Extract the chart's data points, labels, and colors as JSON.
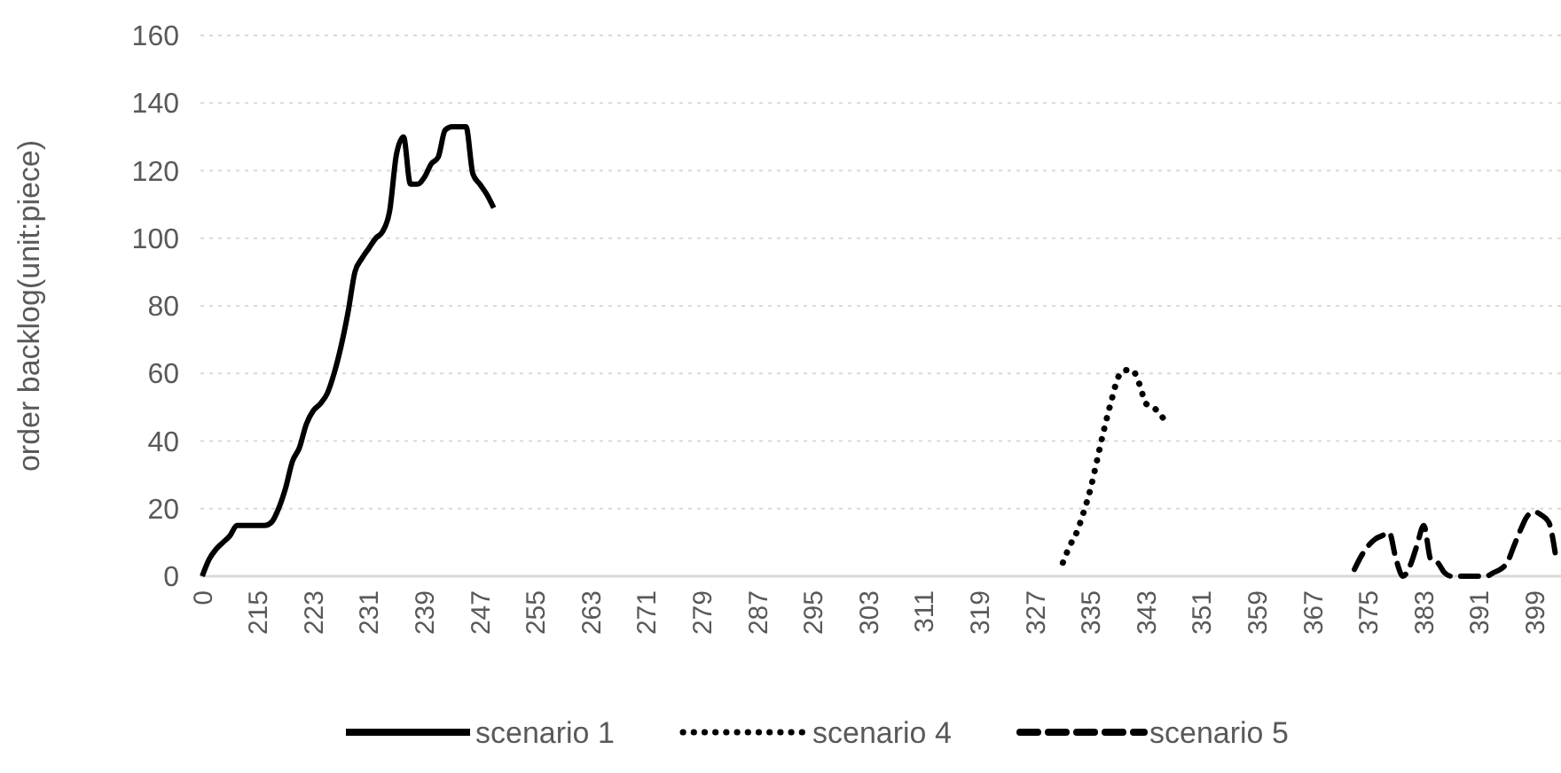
{
  "chart_data": {
    "type": "line",
    "ylabel": "order backlog(unit:piece)",
    "ylim": [
      0,
      160
    ],
    "yticks": [
      0,
      20,
      40,
      60,
      80,
      100,
      120,
      140,
      160
    ],
    "grid": "y",
    "legend": "bottom",
    "categories": [
      "0",
      null,
      null,
      null,
      null,
      null,
      null,
      null,
      "215",
      null,
      null,
      null,
      null,
      null,
      null,
      null,
      "223",
      null,
      null,
      null,
      null,
      null,
      null,
      null,
      "231",
      null,
      null,
      null,
      null,
      null,
      null,
      null,
      "239",
      null,
      null,
      null,
      null,
      null,
      null,
      null,
      "247",
      null,
      null,
      null,
      null,
      null,
      null,
      null,
      "255",
      null,
      null,
      null,
      null,
      null,
      null,
      null,
      "263",
      null,
      null,
      null,
      null,
      null,
      null,
      null,
      "271",
      null,
      null,
      null,
      null,
      null,
      null,
      null,
      "279",
      null,
      null,
      null,
      null,
      null,
      null,
      null,
      "287",
      null,
      null,
      null,
      null,
      null,
      null,
      null,
      "295",
      null,
      null,
      null,
      null,
      null,
      null,
      null,
      "303",
      null,
      null,
      null,
      null,
      null,
      null,
      null,
      "311",
      null,
      null,
      null,
      null,
      null,
      null,
      null,
      "319",
      null,
      null,
      null,
      null,
      null,
      null,
      null,
      "327",
      null,
      null,
      null,
      null,
      null,
      null,
      null,
      "335",
      null,
      null,
      null,
      null,
      null,
      null,
      null,
      "343",
      null,
      null,
      null,
      null,
      null,
      null,
      null,
      "351",
      null,
      null,
      null,
      null,
      null,
      null,
      null,
      "359",
      null,
      null,
      null,
      null,
      null,
      null,
      null,
      "367",
      null,
      null,
      null,
      null,
      null,
      null,
      null,
      "375",
      null,
      null,
      null,
      null,
      null,
      null,
      null,
      "383",
      null,
      null,
      null,
      null,
      null,
      null,
      null,
      "391",
      null,
      null,
      null,
      null,
      null,
      null,
      null,
      "399",
      null,
      null,
      null
    ],
    "series": [
      {
        "name": "scenario 1",
        "color": "#000000",
        "line_style": "solid",
        "values": [
          0,
          5,
          8,
          10,
          12,
          15,
          15,
          15,
          15,
          15,
          16,
          20,
          26,
          34,
          38,
          45,
          49,
          51,
          54,
          60,
          68,
          78,
          90,
          94,
          97,
          100,
          102,
          108,
          125,
          130,
          116,
          116,
          118,
          122,
          124,
          132,
          133,
          133,
          133,
          119,
          116,
          113,
          109,
          null,
          null,
          null,
          null,
          null,
          null,
          null,
          null,
          null,
          null,
          null,
          null,
          null,
          null,
          null,
          null,
          null,
          null,
          null,
          null,
          null,
          null,
          null,
          null,
          null,
          null,
          null,
          null,
          null,
          null,
          null,
          null,
          null,
          null,
          null,
          null,
          null,
          null,
          null,
          null,
          null,
          null,
          null,
          null,
          null,
          null,
          null,
          null,
          null,
          null,
          null,
          null,
          null,
          null,
          null,
          null,
          null,
          null,
          null,
          null,
          null,
          null,
          null,
          null,
          null,
          null,
          null,
          null,
          null,
          null,
          null,
          null,
          null,
          null,
          null,
          null,
          null,
          null,
          null,
          null,
          null,
          null,
          null,
          null,
          null,
          null,
          null,
          null,
          null,
          null,
          null,
          null,
          null,
          null,
          null,
          null,
          null,
          null,
          null,
          null,
          null,
          null,
          null,
          null,
          null,
          null,
          null,
          null,
          null,
          null,
          null,
          null,
          null,
          null,
          null,
          null,
          null,
          null,
          null,
          null,
          null,
          null,
          null,
          null,
          null,
          null,
          null,
          null,
          null,
          null,
          null,
          null,
          null,
          null,
          null,
          null,
          null,
          null,
          null,
          null,
          null,
          null,
          null,
          null,
          null,
          null,
          null,
          null,
          null,
          null,
          null,
          null,
          null
        ]
      },
      {
        "name": "scenario 4",
        "color": "#000000",
        "line_style": "dotted",
        "values": [
          null,
          null,
          null,
          null,
          null,
          null,
          null,
          null,
          null,
          null,
          null,
          null,
          null,
          null,
          null,
          null,
          null,
          null,
          null,
          null,
          null,
          null,
          null,
          null,
          null,
          null,
          null,
          null,
          null,
          null,
          null,
          null,
          null,
          null,
          null,
          null,
          null,
          null,
          null,
          null,
          null,
          null,
          null,
          null,
          null,
          null,
          null,
          null,
          null,
          null,
          null,
          null,
          null,
          null,
          null,
          null,
          null,
          null,
          null,
          null,
          null,
          null,
          null,
          null,
          null,
          null,
          null,
          null,
          null,
          null,
          null,
          null,
          null,
          null,
          null,
          null,
          null,
          null,
          null,
          null,
          null,
          null,
          null,
          null,
          null,
          null,
          null,
          null,
          null,
          null,
          null,
          null,
          null,
          null,
          null,
          null,
          null,
          null,
          null,
          null,
          null,
          null,
          null,
          null,
          null,
          null,
          null,
          null,
          null,
          null,
          null,
          null,
          null,
          null,
          null,
          null,
          null,
          null,
          null,
          null,
          null,
          null,
          null,
          null,
          4,
          9,
          13,
          19,
          26,
          35,
          44,
          52,
          59,
          61,
          61,
          57,
          51,
          50,
          48,
          45,
          null,
          null,
          null,
          null,
          null,
          null,
          null,
          null,
          null,
          null,
          null,
          null,
          null,
          null,
          null,
          null,
          null,
          null,
          null,
          null,
          null,
          null,
          null,
          null,
          null,
          null,
          null,
          null,
          null,
          null,
          null,
          null,
          null,
          null,
          null,
          null,
          null,
          null,
          null,
          null,
          null,
          null,
          null,
          null,
          null,
          null,
          null,
          null,
          null,
          null,
          null,
          null,
          null,
          null,
          null,
          null
        ]
      },
      {
        "name": "scenario 5",
        "color": "#000000",
        "line_style": "dashed",
        "values": [
          null,
          null,
          null,
          null,
          null,
          null,
          null,
          null,
          null,
          null,
          null,
          null,
          null,
          null,
          null,
          null,
          null,
          null,
          null,
          null,
          null,
          null,
          null,
          null,
          null,
          null,
          null,
          null,
          null,
          null,
          null,
          null,
          null,
          null,
          null,
          null,
          null,
          null,
          null,
          null,
          null,
          null,
          null,
          null,
          null,
          null,
          null,
          null,
          null,
          null,
          null,
          null,
          null,
          null,
          null,
          null,
          null,
          null,
          null,
          null,
          null,
          null,
          null,
          null,
          null,
          null,
          null,
          null,
          null,
          null,
          null,
          null,
          null,
          null,
          null,
          null,
          null,
          null,
          null,
          null,
          null,
          null,
          null,
          null,
          null,
          null,
          null,
          null,
          null,
          null,
          null,
          null,
          null,
          null,
          null,
          null,
          null,
          null,
          null,
          null,
          null,
          null,
          null,
          null,
          null,
          null,
          null,
          null,
          null,
          null,
          null,
          null,
          null,
          null,
          null,
          null,
          null,
          null,
          null,
          null,
          null,
          null,
          null,
          null,
          null,
          null,
          null,
          null,
          null,
          null,
          null,
          null,
          null,
          null,
          null,
          null,
          null,
          null,
          null,
          null,
          null,
          null,
          null,
          null,
          null,
          null,
          null,
          null,
          null,
          null,
          null,
          null,
          null,
          null,
          null,
          null,
          null,
          null,
          null,
          null,
          null,
          null,
          null,
          null,
          null,
          null,
          2,
          6,
          9,
          11,
          12,
          13,
          5,
          0,
          3,
          9,
          15,
          5,
          4,
          1,
          0,
          0,
          0,
          0,
          0,
          0,
          1,
          2,
          4,
          9,
          14,
          18,
          19,
          18,
          16,
          6
        ]
      }
    ]
  }
}
